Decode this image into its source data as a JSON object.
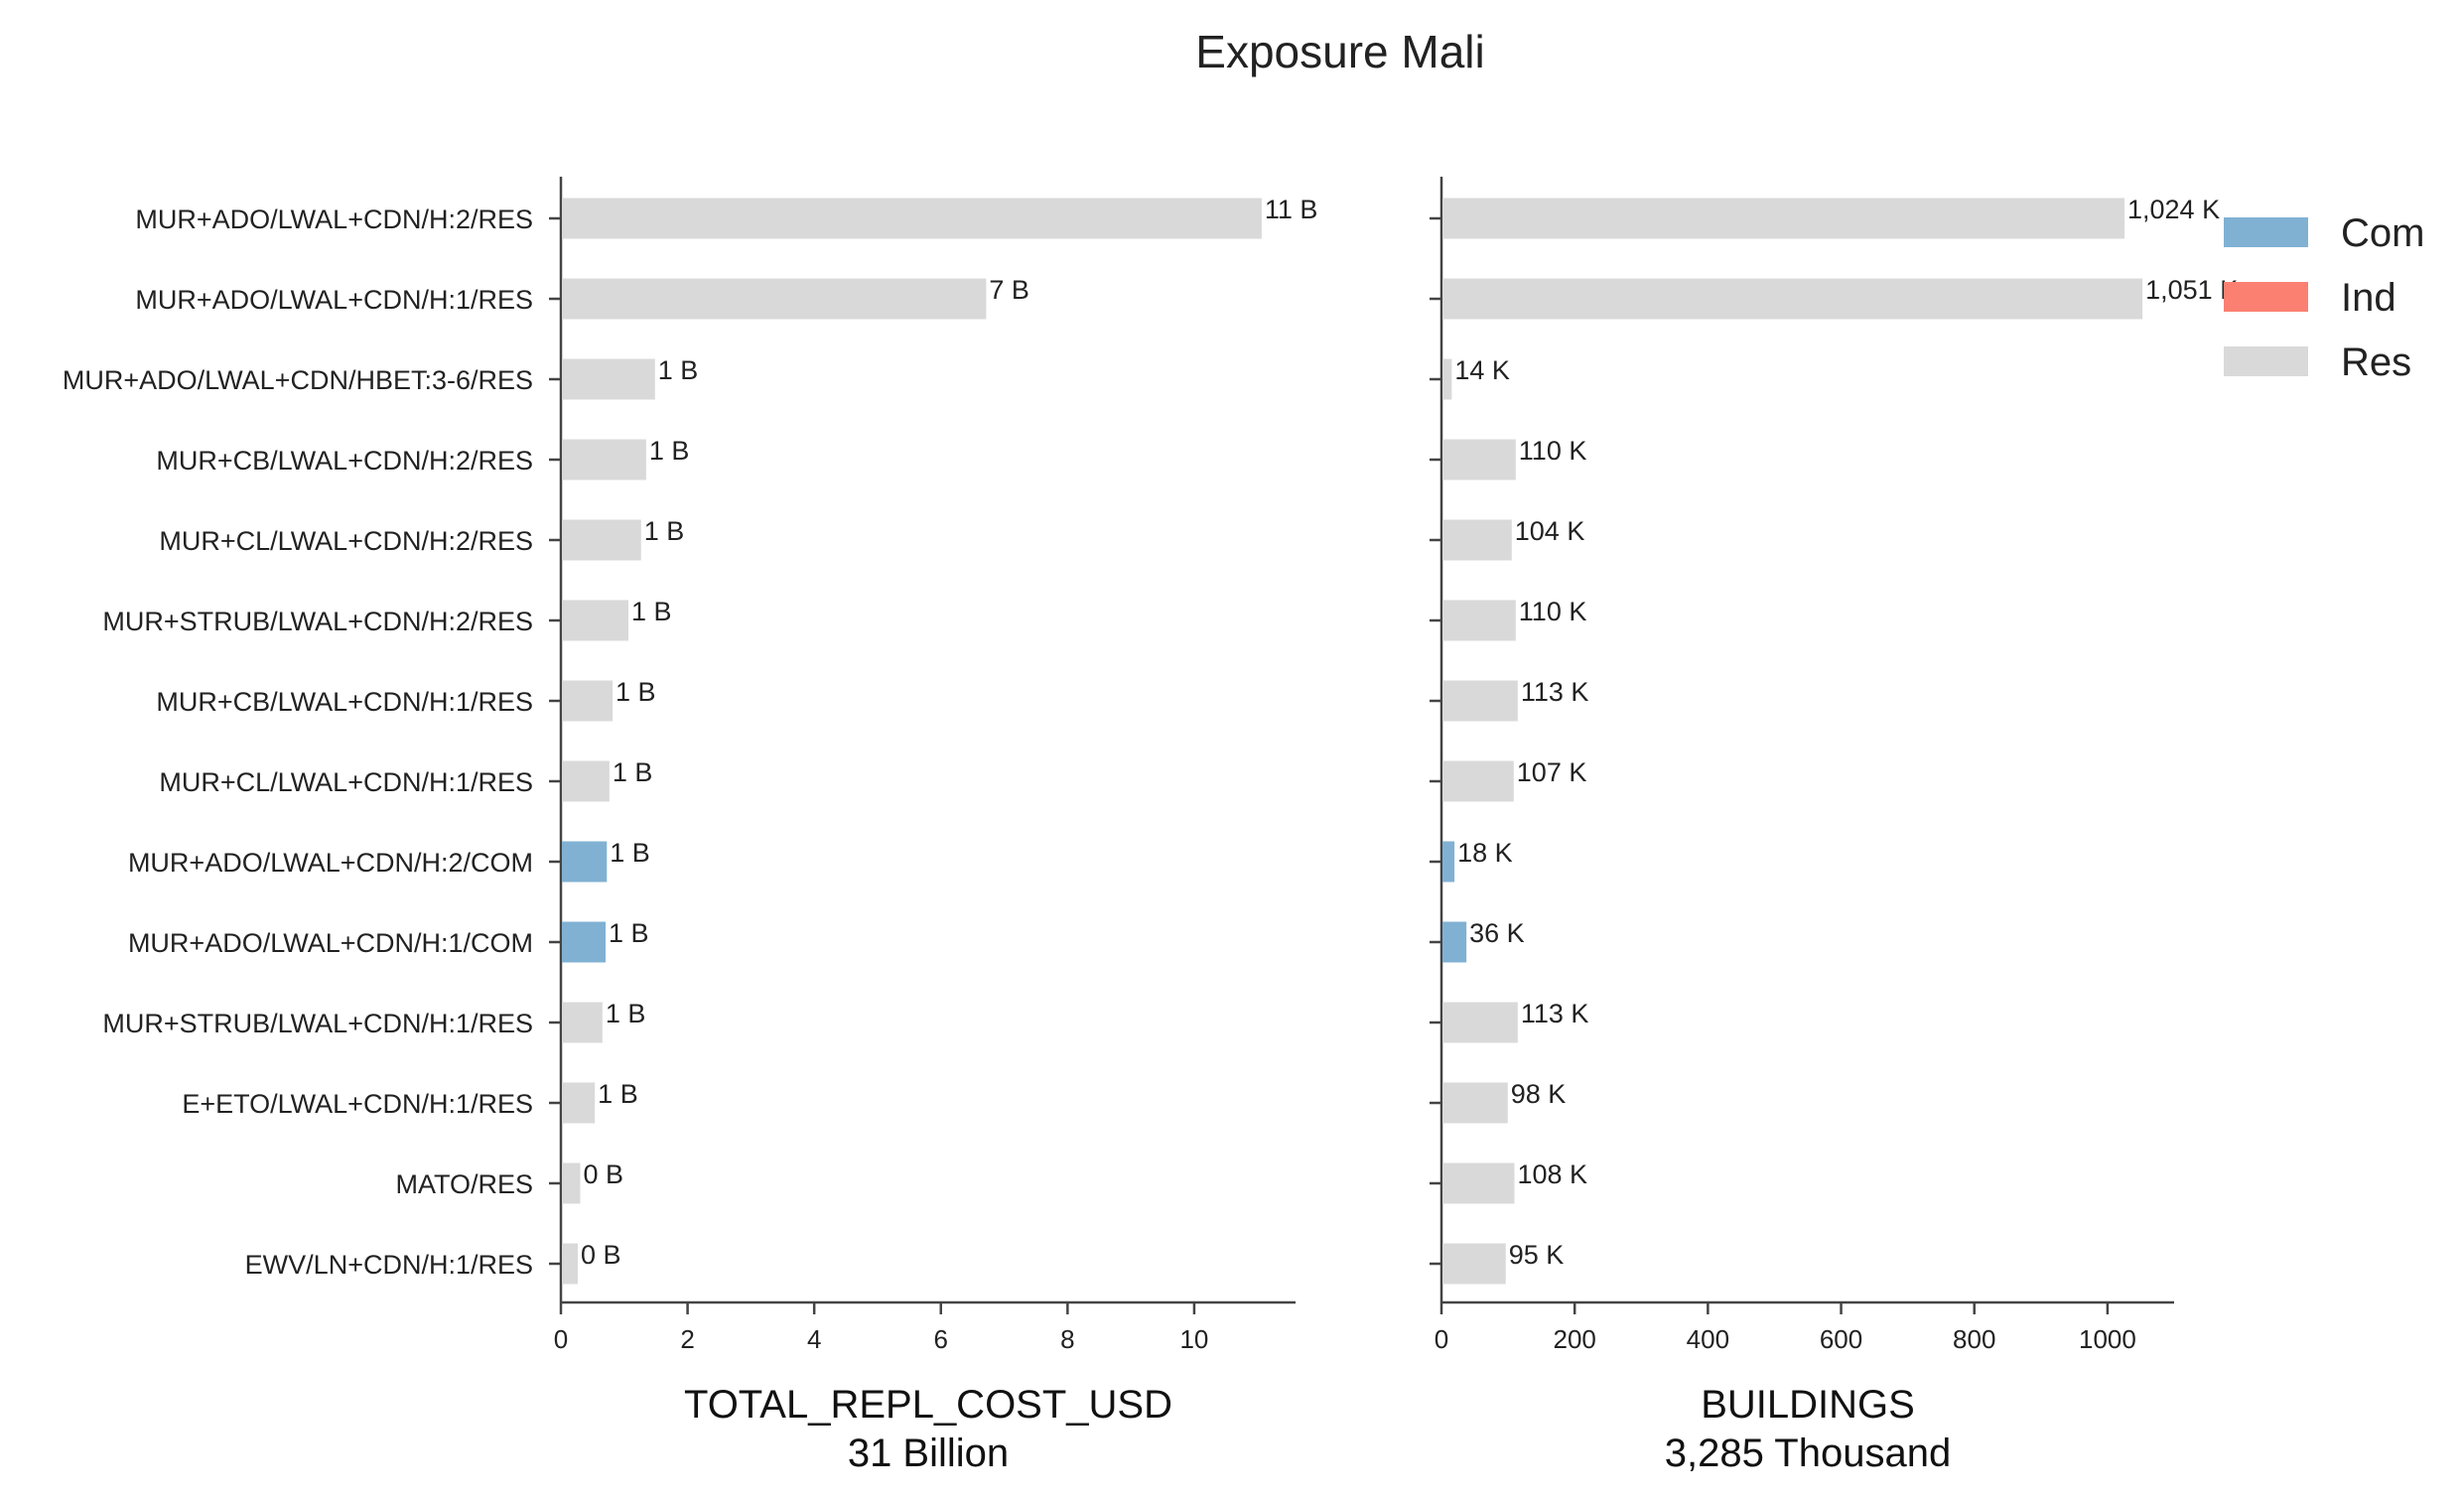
{
  "colors": {
    "Com": "#80b1d3",
    "Ind": "#fb8072",
    "Res": "#d9d9d9"
  },
  "chart_data": [
    {
      "type": "bar",
      "orientation": "horizontal",
      "title": "Exposure Mali",
      "xlabel": "TOTAL_REPL_COST_USD",
      "xlabel_sub": "31 Billion",
      "xlim": [
        0,
        11.6
      ],
      "xticks": [
        "0",
        "2",
        "4",
        "6",
        "8",
        "10"
      ],
      "categories": [
        "MUR+ADO/LWAL+CDN/H:2/RES",
        "MUR+ADO/LWAL+CDN/H:1/RES",
        "MUR+ADO/LWAL+CDN/HBET:3-6/RES",
        "MUR+CB/LWAL+CDN/H:2/RES",
        "MUR+CL/LWAL+CDN/H:2/RES",
        "MUR+STRUB/LWAL+CDN/H:2/RES",
        "MUR+CB/LWAL+CDN/H:1/RES",
        "MUR+CL/LWAL+CDN/H:1/RES",
        "MUR+ADO/LWAL+CDN/H:2/COM",
        "MUR+ADO/LWAL+CDN/H:1/COM",
        "MUR+STRUB/LWAL+CDN/H:1/RES",
        "E+ETO/LWAL+CDN/H:1/RES",
        "MATO/RES",
        "EWV/LN+CDN/H:1/RES"
      ],
      "occupancy": [
        "Res",
        "Res",
        "Res",
        "Res",
        "Res",
        "Res",
        "Res",
        "Res",
        "Com",
        "Com",
        "Res",
        "Res",
        "Res",
        "Res"
      ],
      "values": [
        11.05,
        6.7,
        1.47,
        1.33,
        1.25,
        1.05,
        0.8,
        0.75,
        0.71,
        0.69,
        0.64,
        0.52,
        0.29,
        0.25
      ],
      "data_labels": [
        "11 B",
        "7 B",
        "1 B",
        "1 B",
        "1 B",
        "1 B",
        "1 B",
        "1 B",
        "1 B",
        "1 B",
        "1 B",
        "1 B",
        "0 B",
        "0 B"
      ]
    },
    {
      "type": "bar",
      "orientation": "horizontal",
      "xlabel": "BUILDINGS",
      "xlabel_sub": "3,285 Thousand",
      "xlim": [
        0,
        1100
      ],
      "xticks": [
        "0",
        "200",
        "400",
        "600",
        "800",
        "1000"
      ],
      "categories": [
        "MUR+ADO/LWAL+CDN/H:2/RES",
        "MUR+ADO/LWAL+CDN/H:1/RES",
        "MUR+ADO/LWAL+CDN/HBET:3-6/RES",
        "MUR+CB/LWAL+CDN/H:2/RES",
        "MUR+CL/LWAL+CDN/H:2/RES",
        "MUR+STRUB/LWAL+CDN/H:2/RES",
        "MUR+CB/LWAL+CDN/H:1/RES",
        "MUR+CL/LWAL+CDN/H:1/RES",
        "MUR+ADO/LWAL+CDN/H:2/COM",
        "MUR+ADO/LWAL+CDN/H:1/COM",
        "MUR+STRUB/LWAL+CDN/H:1/RES",
        "E+ETO/LWAL+CDN/H:1/RES",
        "MATO/RES",
        "EWV/LN+CDN/H:1/RES"
      ],
      "occupancy": [
        "Res",
        "Res",
        "Res",
        "Res",
        "Res",
        "Res",
        "Res",
        "Res",
        "Com",
        "Com",
        "Res",
        "Res",
        "Res",
        "Res"
      ],
      "values": [
        1024,
        1051,
        14,
        110,
        104,
        110,
        113,
        107,
        18,
        36,
        113,
        98,
        108,
        95
      ],
      "data_labels": [
        "1,024 K",
        "1,051 K",
        "14 K",
        "110 K",
        "104 K",
        "110 K",
        "113 K",
        "107 K",
        "18 K",
        "36 K",
        "113 K",
        "98 K",
        "108 K",
        "95 K"
      ]
    }
  ],
  "legend": {
    "placement": "top-right",
    "entries": [
      "Com",
      "Ind",
      "Res"
    ]
  }
}
